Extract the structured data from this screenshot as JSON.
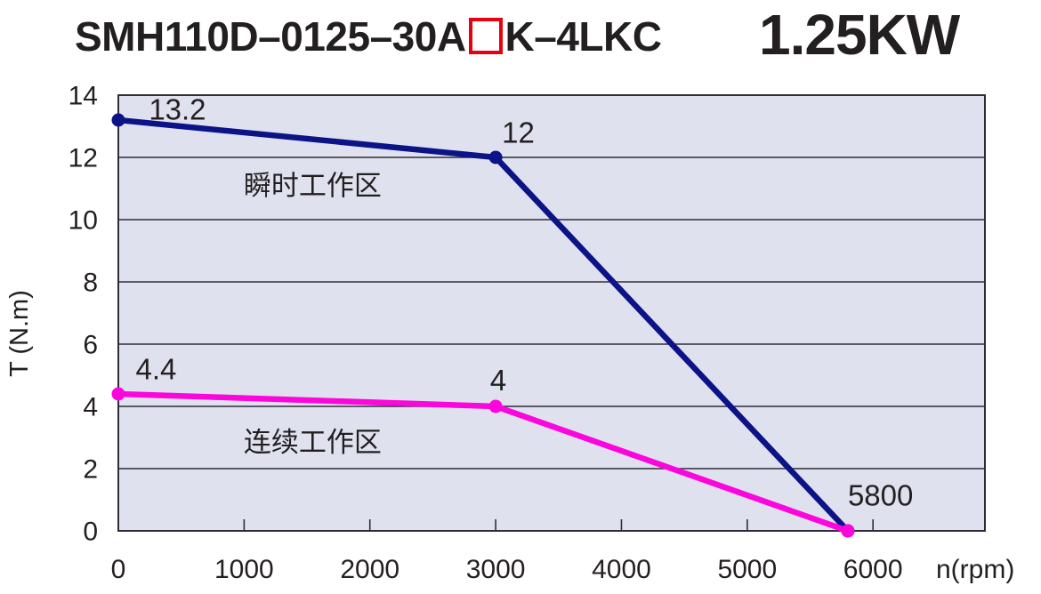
{
  "header": {
    "model_prefix": "SMH110D–0125–30A",
    "model_suffix": "K–4LKC",
    "power": "1.25KW"
  },
  "colors": {
    "red_box": "#e60012",
    "plot_bg": "#dfe1ef",
    "grid": "#2f2e36",
    "border": "#2f2e36",
    "text": "#231f20"
  },
  "chart_data": {
    "type": "line",
    "title": "SMH110D–0125–30A□K–4LKC 1.25KW torque-speed curve",
    "xlabel": "n(rpm)",
    "ylabel": "T (N.m)",
    "xlim": [
      0,
      6890
    ],
    "ylim": [
      0,
      14
    ],
    "x_ticks": [
      0,
      1000,
      2000,
      3000,
      4000,
      5000,
      6000
    ],
    "y_ticks": [
      0,
      2,
      4,
      6,
      8,
      10,
      12,
      14
    ],
    "grid_lines_y": [
      2,
      4,
      6,
      8,
      10,
      12
    ],
    "grid_on": true,
    "legend_position": "none",
    "series": [
      {
        "name": "瞬时工作区",
        "color": "#0c1387",
        "points": [
          [
            0,
            13.2
          ],
          [
            3000,
            12
          ],
          [
            5800,
            0
          ]
        ],
        "point_labels": [
          {
            "text": "13.2",
            "x": 470,
            "y": 13.55
          },
          {
            "text": "12",
            "x": 3180,
            "y": 12.8
          }
        ]
      },
      {
        "name": "连续工作区",
        "color": "#fb06dd",
        "points": [
          [
            0,
            4.4
          ],
          [
            3000,
            4
          ],
          [
            5800,
            0
          ]
        ],
        "point_labels": [
          {
            "text": "4.4",
            "x": 300,
            "y": 5.2
          },
          {
            "text": "4",
            "x": 3020,
            "y": 4.85
          },
          {
            "text": "5800",
            "x": 6060,
            "y": 1.15
          }
        ]
      }
    ],
    "region_labels": [
      {
        "text": "瞬时工作区",
        "x": 1545,
        "y": 11.1
      },
      {
        "text": "连续工作区",
        "x": 1545,
        "y": 2.85
      }
    ]
  }
}
